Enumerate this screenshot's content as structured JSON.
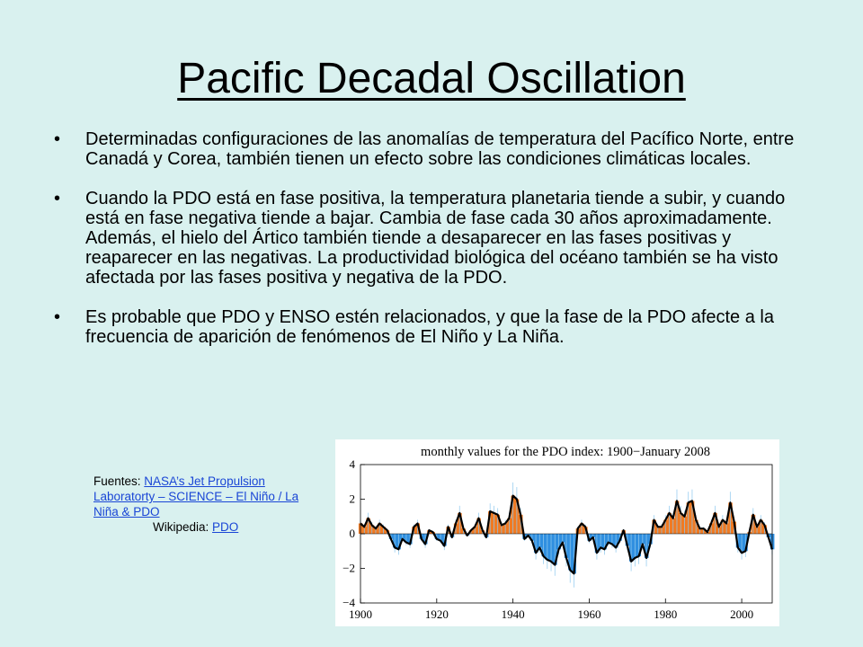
{
  "slide": {
    "title": "Pacific Decadal Oscillation",
    "bullets": [
      "Determinadas configuraciones de las anomalías de temperatura del Pacífico Norte, entre Canadá y Corea, también tienen un efecto sobre las condiciones climáticas locales.",
      "Cuando la PDO está en fase positiva, la temperatura planetaria tiende a subir, y cuando está en fase negativa tiende a bajar. Cambia de fase cada 30 años aproximadamente. Además, el hielo del Ártico también tiende a desaparecer en las fases positivas y reaparecer en las negativas. La productividad biológica del océano también se ha visto afectada por las fases positiva y negativa de la PDO.",
      "Es probable que PDO y ENSO estén relacionados, y que la fase de la PDO afecte a la frecuencia de aparición de fenómenos de El Niño y La Niña."
    ],
    "bullet_symbol": "•",
    "sources": {
      "prefix": "Fuentes: ",
      "link1": "NASA’s Jet Propulsion Laboratorty – SCIENCE – El Niño / La Niña & PDO",
      "wiki_prefix": "Wikipedia: ",
      "link2": "PDO"
    }
  },
  "colors": {
    "background": "#d9f1ef",
    "positive": "#f07a22",
    "negative": "#2f8fe0",
    "monthly_light": "#8fc9ef",
    "smoothed": "#000000",
    "link": "#1a46d6"
  },
  "chart_data": {
    "type": "area",
    "title": "monthly values for the PDO index: 1900−January 2008",
    "xlim": [
      1900,
      2008
    ],
    "ylim": [
      -4,
      4
    ],
    "x_ticks": [
      1900,
      1920,
      1940,
      1960,
      1980,
      2000
    ],
    "y_ticks": [
      4,
      2,
      0,
      -2,
      -4
    ],
    "y_tick_labels": [
      "4",
      "2",
      "0",
      "−2",
      "−4"
    ],
    "grid": false,
    "series": [
      {
        "x": [
          1900,
          1901,
          1902,
          1903,
          1904,
          1905,
          1906,
          1907,
          1908,
          1909,
          1910,
          1911,
          1912,
          1913,
          1914,
          1915,
          1916,
          1917,
          1918,
          1919,
          1920,
          1921,
          1922,
          1923,
          1924,
          1925,
          1926,
          1927,
          1928,
          1929,
          1930,
          1931,
          1932,
          1933,
          1934,
          1935,
          1936,
          1937,
          1938,
          1939,
          1940,
          1941,
          1942,
          1943,
          1944,
          1945,
          1946,
          1947,
          1948,
          1949,
          1950,
          1951,
          1952,
          1953,
          1954,
          1955,
          1956,
          1957,
          1958,
          1959,
          1960,
          1961,
          1962,
          1963,
          1964,
          1965,
          1966,
          1967,
          1968,
          1969,
          1970,
          1971,
          1972,
          1973,
          1974,
          1975,
          1976,
          1977,
          1978,
          1979,
          1980,
          1981,
          1982,
          1983,
          1984,
          1985,
          1986,
          1987,
          1988,
          1989,
          1990,
          1991,
          1992,
          1993,
          1994,
          1995,
          1996,
          1997,
          1998,
          1999,
          2000,
          2001,
          2002,
          2003,
          2004,
          2005,
          2006,
          2007,
          2008
        ],
        "values": [
          0.6,
          0.4,
          0.9,
          0.5,
          0.3,
          0.6,
          0.4,
          0.2,
          -0.3,
          -0.8,
          -0.9,
          -0.3,
          -0.5,
          -0.6,
          0.4,
          0.6,
          -0.3,
          -0.6,
          0.2,
          0.1,
          -0.3,
          -0.4,
          -0.7,
          0.4,
          -0.2,
          0.6,
          1.2,
          0.3,
          -0.1,
          0.2,
          0.4,
          0.9,
          0.2,
          -0.2,
          1.3,
          1.2,
          1.1,
          0.5,
          0.6,
          0.9,
          2.2,
          2.0,
          1.1,
          -0.3,
          -0.1,
          -0.4,
          -1.1,
          -0.8,
          -1.3,
          -1.5,
          -1.6,
          -1.8,
          -0.9,
          -0.5,
          -1.4,
          -2.1,
          -2.3,
          0.3,
          0.6,
          0.4,
          -0.4,
          -0.2,
          -1.1,
          -0.8,
          -0.9,
          -0.5,
          -0.6,
          -0.8,
          -0.4,
          0.2,
          -0.7,
          -1.6,
          -1.4,
          -1.3,
          -0.6,
          -1.4,
          -0.6,
          0.8,
          0.4,
          0.4,
          0.8,
          1.2,
          0.9,
          1.9,
          1.2,
          1.0,
          1.8,
          1.9,
          0.8,
          0.3,
          0.3,
          0.1,
          0.6,
          1.2,
          0.4,
          0.8,
          0.6,
          1.8,
          0.7,
          -0.8,
          -1.1,
          -1.0,
          0.1,
          1.1,
          0.4,
          0.8,
          0.5,
          -0.2,
          -0.9
        ]
      }
    ]
  }
}
